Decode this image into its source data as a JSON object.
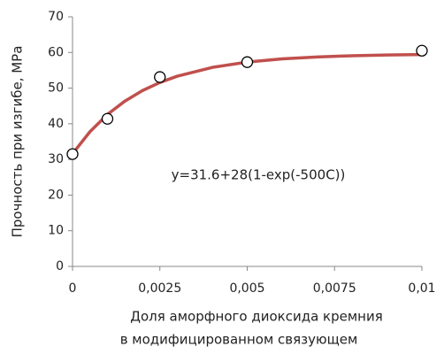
{
  "chart_data": {
    "type": "scatter",
    "x_label": [
      "Доля аморфного диоксида кремния",
      "в модифицированном связующем"
    ],
    "y_label": "Прочность при изгибе, МРа",
    "annotation": "y=31.6+28(1-exp(-500C))",
    "xlim": [
      0,
      0.01
    ],
    "xticks": [
      0,
      {
        "value": 0.0025,
        "label": "0,0025"
      },
      {
        "value": 0.005,
        "label": "0,005"
      },
      {
        "value": 0.0075,
        "label": "0,0075"
      },
      {
        "value": 0.01,
        "label": "0,01"
      }
    ],
    "ylim": [
      0,
      70
    ],
    "yticks": [
      0,
      10,
      20,
      30,
      40,
      50,
      60,
      70
    ],
    "grid": false,
    "series": [
      {
        "type": "line",
        "color": "#c0504d",
        "x": [
          0,
          0.0005,
          0.001,
          0.0015,
          0.002,
          0.0025,
          0.003,
          0.004,
          0.005,
          0.006,
          0.007,
          0.008,
          0.009,
          0.01
        ],
        "values": [
          31.6,
          37.79,
          42.62,
          46.37,
          49.3,
          51.58,
          53.35,
          55.81,
          57.3,
          58.21,
          58.75,
          59.09,
          59.29,
          59.41
        ]
      },
      {
        "type": "scatter",
        "color": "#000000",
        "x": [
          0,
          0.001,
          0.0025,
          0.005,
          0.01
        ],
        "values": [
          31.5,
          41.4,
          53.1,
          57.3,
          60.5
        ]
      }
    ]
  }
}
